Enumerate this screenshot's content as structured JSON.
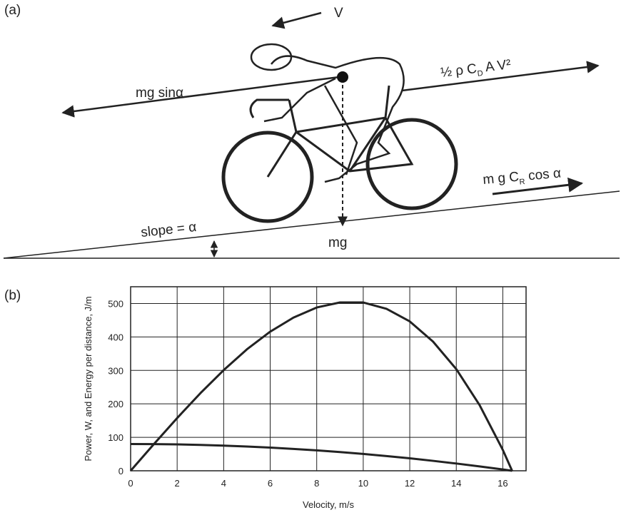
{
  "panels": [
    "(a)",
    "(b)"
  ],
  "diagram": {
    "velocity": "V",
    "gravity_component": "mg sinα",
    "drag": [
      "½ ρ C",
      "D",
      " A V²"
    ],
    "rolling": [
      "m g C",
      "R",
      " cos α"
    ],
    "slope": "slope = α",
    "weight": "mg"
  },
  "chart_data": {
    "type": "line",
    "xlabel": "Velocity, m/s",
    "ylabel": "Power, W, and Energy per distance, J/m",
    "x": [
      0,
      1,
      2,
      3,
      4,
      5,
      6,
      7,
      8,
      9,
      10,
      11,
      12,
      13,
      14,
      15,
      16,
      16.4
    ],
    "series": [
      {
        "color": "#222222",
        "values": [
          0,
          79.7,
          157.6,
          231.9,
          300.8,
          363,
          415.8,
          457.8,
          488,
          503.1,
          503,
          484,
          446.4,
          386.1,
          303.8,
          196.5,
          62.4,
          0
        ]
      },
      {
        "color": "#222222",
        "values": [
          80,
          79.7,
          78.8,
          77.3,
          75.2,
          72.6,
          69.3,
          65.4,
          61,
          55.9,
          50.3,
          44,
          37.2,
          29.7,
          21.7,
          13.1,
          3.9,
          0
        ]
      }
    ],
    "xlim": [
      0,
      17
    ],
    "ylim": [
      0,
      550
    ],
    "xticks": [
      0,
      2,
      4,
      6,
      8,
      10,
      12,
      14,
      16
    ],
    "yticks": [
      0,
      100,
      200,
      300,
      400,
      500
    ],
    "grid": true
  }
}
